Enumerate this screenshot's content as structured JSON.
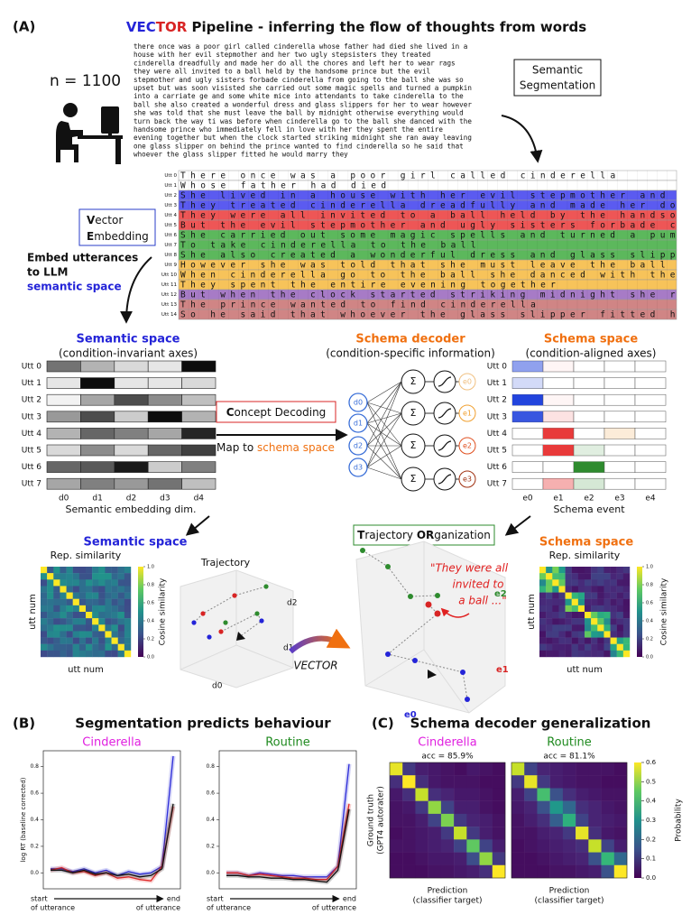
{
  "figure": {
    "panel_a": {
      "label": "(A)",
      "title": [
        {
          "text": "VEC",
          "color": "#2424d8"
        },
        {
          "text": "TOR",
          "color": "#d82424"
        },
        {
          "text": " Pipeline - inferring the flow of thoughts from words",
          "color": "#111111"
        }
      ],
      "n_label": "n = 1100",
      "story": [
        "there once was a poor girl called cinderella whose father had died she lived in a",
        "house with her evil stepmother and her two ugly stepsisters they treated",
        "cinderella dreadfully and made her do all the chores and left her to wear rags",
        "they were all invited to a ball held by the handsome prince but the evil",
        "stepmother and ugly sisters forbade cinderella from going to the ball she was so",
        "upset but was soon visisted she carried out some magic spells and turned a pumpkin",
        "into a carriate ge and some white mice into attendants to take cinderella to the",
        "ball she also created a wonderful dress and glass slippers for her to wear however",
        "she was told that she must leave the ball by midnight otherwise everything would",
        "turn back the way ti was before when cinderella go to the ball she danced with the",
        "handsome prince who immediately fell in love with her they spent the entire",
        "evening together but when the clock started striking midnight she ran away leaving",
        "one glass slipper on behind the prince wanted to find cinderella so he said that",
        "whoever the glass slipper fitted he would marry they"
      ],
      "segmentation_box": [
        "Semantic",
        "Segmentation"
      ],
      "table": {
        "rows": [
          {
            "label": "Utt 0",
            "text": "There once was a poor girl called cinderella",
            "color": "#ffffff"
          },
          {
            "label": "Utt 1",
            "text": "Whose father had died",
            "color": "#ffffff"
          },
          {
            "label": "Utt 2",
            "text": "She lived in a house with her evil stepmother and",
            "color": "#5b5bf0"
          },
          {
            "label": "Utt 3",
            "text": "They treated cinderella dreadfully and made her do",
            "color": "#5b5bf0"
          },
          {
            "label": "Utt 4",
            "text": "They were all invited to a ball held by the handso",
            "color": "#ee5656"
          },
          {
            "label": "Utt 5",
            "text": "But the evil stepmother and ugly sisters forbade c",
            "color": "#ee5656"
          },
          {
            "label": "Utt 6",
            "text": "She carried out some magic spells and turned a pum",
            "color": "#5cb85c"
          },
          {
            "label": "Utt 7",
            "text": "To take cinderella to the ball",
            "color": "#5cb85c"
          },
          {
            "label": "Utt 8",
            "text": "She also created a wonderful dress and glass slipp",
            "color": "#5cb85c"
          },
          {
            "label": "Utt 9",
            "text": "However she was told that she must leave the ball",
            "color": "#f7c35a"
          },
          {
            "label": "Utt 10",
            "text": "When cinderella go to the ball she danced with the",
            "color": "#f7c35a"
          },
          {
            "label": "Utt 11",
            "text": "They spent the entire evening together",
            "color": "#f7c35a"
          },
          {
            "label": "Utt 12",
            "text": "But when the clock started striking midnight she r",
            "color": "#a77bc6"
          },
          {
            "label": "Utt 13",
            "text": "The prince wanted to find cinderella",
            "color": "#d08585"
          },
          {
            "label": "Utt 14",
            "text": "So he said that whoever the glass slipper fitted h",
            "color": "#d08585"
          }
        ]
      },
      "embedding_box": [
        {
          "first": "V",
          "rest": "ector"
        },
        {
          "first": "E",
          "rest": "mbedding"
        }
      ],
      "embed_text": [
        "Embed utterances",
        "to LLM",
        "semantic space"
      ],
      "semantic_space": {
        "title": "Semantic space",
        "subtitle": "(condition-invariant axes)",
        "rows": [
          "Utt 0",
          "Utt 1",
          "Utt 2",
          "Utt 3",
          "Utt 4",
          "Utt 5",
          "Utt 6",
          "Utt 7"
        ],
        "dims": [
          "d0",
          "d1",
          "d2",
          "d3",
          "d4"
        ],
        "axis_label": "Semantic embedding dim.",
        "levels": [
          [
            0.55,
            0.3,
            0.15,
            0.1,
            0.95
          ],
          [
            0.1,
            0.95,
            0.1,
            0.1,
            0.15
          ],
          [
            0.05,
            0.35,
            0.7,
            0.45,
            0.25
          ],
          [
            0.4,
            0.7,
            0.2,
            0.95,
            0.3
          ],
          [
            0.3,
            0.6,
            0.5,
            0.35,
            0.85
          ],
          [
            0.15,
            0.45,
            0.15,
            0.6,
            0.75
          ],
          [
            0.6,
            0.65,
            0.9,
            0.2,
            0.5
          ],
          [
            0.35,
            0.5,
            0.4,
            0.55,
            0.25
          ]
        ]
      },
      "schema_decoder": {
        "title": "Schema decoder",
        "subtitle": "(condition-specific information)",
        "inputs": [
          "d0",
          "d1",
          "d2",
          "d3"
        ],
        "sum": "Σ",
        "outputs": [
          "e0",
          "e1",
          "e2",
          "e3"
        ],
        "output_colors": [
          "#f0c080",
          "#f0a030",
          "#e05020",
          "#a03010"
        ]
      },
      "concept_box": {
        "first": "C",
        "rest": "oncept Decoding"
      },
      "map_text": {
        "prefix": "Map to ",
        "em": "schema space"
      },
      "schema_space": {
        "title": "Schema space",
        "subtitle": "(condition-aligned axes)",
        "rows": [
          "Utt 0",
          "Utt 1",
          "Utt 2",
          "Utt 3",
          "Utt 4",
          "Utt 5",
          "Utt 6",
          "Utt 7"
        ],
        "events": [
          "e0",
          "e1",
          "e2",
          "e3",
          "e4"
        ],
        "event_colors": [
          "#2244dd",
          "#e83a3a",
          "#2e8b2e",
          "#f0a040",
          "#888888"
        ],
        "axis_label": "Schema event",
        "intensity": [
          [
            0.5,
            0.05,
            0,
            0,
            0
          ],
          [
            0.2,
            0,
            0,
            0,
            0
          ],
          [
            1,
            0.05,
            0,
            0,
            0
          ],
          [
            0.9,
            0.15,
            0,
            0,
            0
          ],
          [
            0,
            1,
            0,
            0.2,
            0
          ],
          [
            0,
            1,
            0.15,
            0,
            0
          ],
          [
            0,
            0,
            1,
            0,
            0
          ],
          [
            0,
            0.4,
            0.2,
            0,
            0
          ]
        ]
      },
      "trajectory_box": [
        {
          "first": "T",
          "rest": "rajectory "
        },
        {
          "first": "OR",
          "rest": "ganization"
        }
      ],
      "semantic_result": {
        "title": "Semantic space",
        "rep": "Rep. similarity",
        "x_label": "utt num",
        "y_label": "utt num",
        "cbar_label": "Cosine similarity",
        "cbar_ticks": [
          {
            "value": 0,
            "label": "0.0"
          },
          0.2,
          0.4,
          0.6,
          0.8,
          {
            "value": 1,
            "label": "1.0"
          }
        ],
        "trajectory": "Trajectory",
        "axes": [
          "d0",
          "d1",
          "d2"
        ]
      },
      "vector_arrow": "VECTOR",
      "schema_result": {
        "title": "Schema space",
        "rep": "Rep. similarity",
        "x_label": "utt num",
        "y_label": "utt num",
        "cbar_label": "Cosine similarity",
        "cbar_ticks": [
          {
            "value": 0,
            "label": "0.0"
          },
          0.2,
          0.4,
          0.6,
          0.8,
          {
            "value": 1,
            "label": "1.0"
          }
        ],
        "quote": [
          "\"They were all",
          "invited to",
          "a ball ...\""
        ],
        "axes": [
          "e0",
          "e1",
          "e2"
        ]
      }
    },
    "panel_b": {
      "label": "(B)",
      "title": "Segmentation predicts behaviour"
    },
    "panel_c": {
      "label": "(C)",
      "title": "Schema decoder generalization"
    }
  },
  "chart_data": [
    {
      "type": "line",
      "title": "Cinderella",
      "title_color": "#e020e0",
      "ylabel": "log RT (baseline corrected)",
      "xlabel_start": [
        "start",
        "of utterance"
      ],
      "xlabel_end": [
        "end",
        "of utterance"
      ],
      "categories": [
        null,
        null,
        null,
        null,
        null,
        null,
        null,
        null,
        null,
        null,
        null,
        null
      ],
      "ylim": [
        -0.12,
        0.92
      ],
      "yticks": [
        {
          "value": 0,
          "label": "0.0"
        },
        0.2,
        0.4,
        0.6,
        0.8
      ],
      "series": [
        {
          "color": "#2b2bd8",
          "values": [
            0.03,
            0.03,
            0.01,
            0.03,
            0.0,
            0.02,
            -0.02,
            0.01,
            -0.01,
            0.0,
            0.05,
            0.88
          ]
        },
        {
          "color": "#e02828",
          "values": [
            0.02,
            0.04,
            0.0,
            0.01,
            -0.02,
            0.0,
            -0.04,
            -0.03,
            -0.05,
            -0.06,
            0.05,
            0.5
          ]
        },
        {
          "color": "#111111",
          "values": [
            0.02,
            0.02,
            0.0,
            0.02,
            -0.01,
            0.0,
            -0.02,
            -0.01,
            -0.03,
            -0.02,
            0.03,
            0.52
          ]
        }
      ]
    },
    {
      "type": "line",
      "title": "Routine",
      "title_color": "#1f8a1f",
      "xlabel_start": [
        "start",
        "of utterance"
      ],
      "xlabel_end": [
        "end",
        "of utterance"
      ],
      "categories": [
        null,
        null,
        null,
        null,
        null,
        null,
        null,
        null,
        null,
        null,
        null,
        null
      ],
      "ylim": [
        -0.12,
        0.92
      ],
      "yticks": [
        {
          "value": 0,
          "label": "0.0"
        },
        0.2,
        0.4,
        0.6,
        0.8
      ],
      "series": [
        {
          "color": "#2b2bd8",
          "values": [
            0.0,
            0.0,
            -0.02,
            0.0,
            -0.01,
            -0.02,
            -0.02,
            -0.03,
            -0.03,
            -0.03,
            0.05,
            0.82
          ]
        },
        {
          "color": "#e02828",
          "values": [
            0.0,
            0.0,
            -0.02,
            -0.01,
            -0.02,
            -0.03,
            -0.04,
            -0.04,
            -0.05,
            -0.05,
            0.05,
            0.52
          ]
        },
        {
          "color": "#111111",
          "values": [
            -0.02,
            -0.02,
            -0.03,
            -0.03,
            -0.04,
            -0.04,
            -0.05,
            -0.05,
            -0.06,
            -0.07,
            0.02,
            0.48
          ]
        }
      ]
    },
    {
      "type": "heatmap",
      "title": "Cinderella",
      "title_color": "#e020e0",
      "subtitle": "acc = 85.9%",
      "xlabel": [
        "Prediction",
        "(classifier target)"
      ],
      "ylabel": [
        "Ground truth",
        "(GPT4 autorater)"
      ],
      "clim": [
        0,
        0.6
      ],
      "values": [
        [
          0.58,
          0.1,
          0.05,
          0.04,
          0.03,
          0.02,
          0.04,
          0.03,
          0.02
        ],
        [
          0.08,
          0.6,
          0.08,
          0.04,
          0.03,
          0.03,
          0.03,
          0.02,
          0.02
        ],
        [
          0.04,
          0.08,
          0.55,
          0.08,
          0.06,
          0.04,
          0.04,
          0.03,
          0.02
        ],
        [
          0.03,
          0.04,
          0.1,
          0.5,
          0.12,
          0.05,
          0.05,
          0.03,
          0.02
        ],
        [
          0.03,
          0.03,
          0.05,
          0.12,
          0.48,
          0.1,
          0.06,
          0.05,
          0.03
        ],
        [
          0.02,
          0.03,
          0.04,
          0.05,
          0.1,
          0.55,
          0.1,
          0.05,
          0.03
        ],
        [
          0.03,
          0.03,
          0.04,
          0.05,
          0.06,
          0.12,
          0.45,
          0.12,
          0.05
        ],
        [
          0.02,
          0.02,
          0.03,
          0.04,
          0.04,
          0.05,
          0.14,
          0.5,
          0.1
        ],
        [
          0.02,
          0.02,
          0.02,
          0.03,
          0.03,
          0.04,
          0.05,
          0.08,
          0.62
        ]
      ]
    },
    {
      "type": "heatmap",
      "title": "Routine",
      "title_color": "#1f8a1f",
      "subtitle": "acc = 81.1%",
      "xlabel": [
        "Prediction",
        "(classifier target)"
      ],
      "clim": [
        0,
        0.6
      ],
      "cbar_label": "Probability",
      "cbar_ticks": [
        {
          "value": 0,
          "label": "0.0"
        },
        0.1,
        0.2,
        0.3,
        0.4,
        0.5,
        0.6
      ],
      "values": [
        [
          0.55,
          0.12,
          0.06,
          0.05,
          0.04,
          0.03,
          0.03,
          0.03,
          0.02
        ],
        [
          0.1,
          0.58,
          0.1,
          0.05,
          0.04,
          0.03,
          0.03,
          0.02,
          0.02
        ],
        [
          0.05,
          0.12,
          0.42,
          0.15,
          0.08,
          0.05,
          0.04,
          0.03,
          0.03
        ],
        [
          0.04,
          0.06,
          0.15,
          0.32,
          0.2,
          0.08,
          0.06,
          0.04,
          0.03
        ],
        [
          0.03,
          0.05,
          0.08,
          0.18,
          0.38,
          0.12,
          0.06,
          0.05,
          0.04
        ],
        [
          0.03,
          0.03,
          0.05,
          0.06,
          0.1,
          0.58,
          0.08,
          0.04,
          0.03
        ],
        [
          0.02,
          0.03,
          0.04,
          0.05,
          0.06,
          0.08,
          0.55,
          0.12,
          0.05
        ],
        [
          0.02,
          0.02,
          0.03,
          0.04,
          0.05,
          0.06,
          0.15,
          0.4,
          0.2
        ],
        [
          0.02,
          0.02,
          0.02,
          0.03,
          0.03,
          0.04,
          0.05,
          0.15,
          0.62
        ]
      ]
    }
  ]
}
